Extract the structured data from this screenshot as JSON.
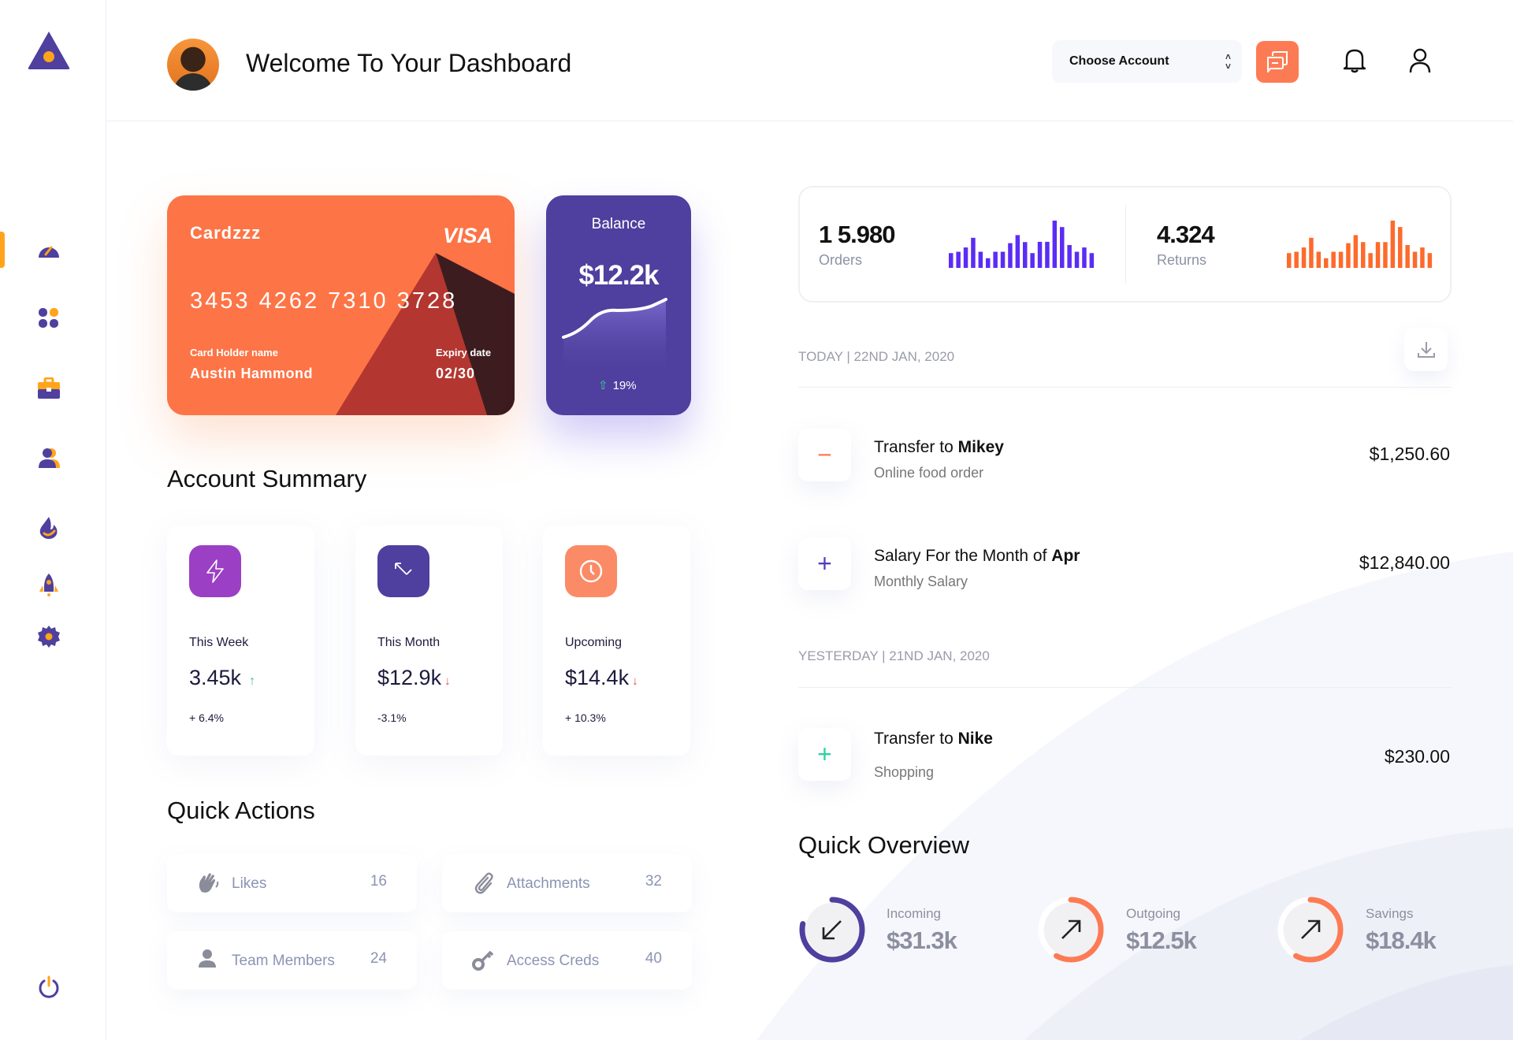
{
  "header": {
    "title": "Welcome To Your Dashboard",
    "account_select": "Choose Account"
  },
  "sidebar": {
    "items": [
      {
        "icon": "dashboard-gauge-icon"
      },
      {
        "icon": "apps-grid-icon"
      },
      {
        "icon": "briefcase-icon"
      },
      {
        "icon": "users-icon"
      },
      {
        "icon": "fire-icon"
      },
      {
        "icon": "rocket-icon"
      },
      {
        "icon": "settings-gear-icon"
      }
    ],
    "active": 0,
    "logout_icon": "power-icon"
  },
  "card": {
    "name": "Cardzzz",
    "brand": "VISA",
    "number": "3453 4262 7310 3728",
    "holder_label": "Card Holder name",
    "holder": "Austin Hammond",
    "expiry_label": "Expiry date",
    "expiry": "02/30"
  },
  "balance": {
    "label": "Balance",
    "value": "$12.2k",
    "change": "19%"
  },
  "account_summary": {
    "title": "Account Summary",
    "items": [
      {
        "label": "This Week",
        "value": "3.45k",
        "change": "+ 6.4%",
        "trend": "up",
        "color": "#9b3fc4",
        "icon": "lightning-icon"
      },
      {
        "label": "This Month",
        "value": "$12.9k",
        "change": "-3.1%",
        "trend": "down",
        "color": "#4f3f9e",
        "icon": "arrow-up-left-icon"
      },
      {
        "label": "Upcoming",
        "value": "$14.4k",
        "change": "+ 10.3%",
        "trend": "down",
        "color": "#fb8a66",
        "icon": "clock-icon"
      }
    ]
  },
  "quick_actions": {
    "title": "Quick Actions",
    "items": [
      {
        "label": "Likes",
        "count": "16",
        "icon": "clap-hands-icon"
      },
      {
        "label": "Attachments",
        "count": "32",
        "icon": "paperclip-icon"
      },
      {
        "label": "Team Members",
        "count": "24",
        "icon": "person-icon"
      },
      {
        "label": "Access Creds",
        "count": "40",
        "icon": "key-icon"
      }
    ]
  },
  "stats": {
    "orders": {
      "value": "1 5.980",
      "label": "Orders",
      "color": "#5b2cf5",
      "bars": [
        55,
        60,
        76,
        112,
        60,
        36,
        60,
        60,
        92,
        122,
        96,
        55,
        97,
        97,
        176,
        152,
        85,
        60,
        76,
        55
      ]
    },
    "returns": {
      "value": "4.324",
      "label": "Returns",
      "color": "#fd6a2c",
      "bars": [
        55,
        60,
        76,
        112,
        60,
        36,
        60,
        60,
        92,
        122,
        96,
        55,
        96,
        96,
        176,
        152,
        85,
        60,
        76,
        55
      ]
    }
  },
  "transactions": {
    "today_label": "TODAY | 22ND JAN, 2020",
    "yesterday_label": "YESTERDAY | 21ND JAN, 2020",
    "items": [
      {
        "sign": "−",
        "sign_color": "#fd7b54",
        "prefix": "Transfer to ",
        "bold": "Mikey",
        "sub": "Online food order",
        "amount": "$1,250.60"
      },
      {
        "sign": "+",
        "sign_color": "#4f3fc0",
        "prefix": "Salary For the Month of ",
        "bold": "Apr",
        "sub": "Monthly Salary",
        "amount": "$12,840.00"
      },
      {
        "sign": "+",
        "sign_color": "#2fd1a0",
        "prefix": "Transfer to ",
        "bold": "Nike",
        "sub": "Shopping",
        "amount": "$230.00"
      }
    ]
  },
  "overview": {
    "title": "Quick Overview",
    "items": [
      {
        "label": "Incoming",
        "value": "$31.3k",
        "progress": 0.78,
        "color": "#4f3f9e",
        "icon": "arrow-down-left-icon"
      },
      {
        "label": "Outgoing",
        "value": "$12.5k",
        "progress": 0.58,
        "color": "#fd7b54",
        "icon": "arrow-up-right-icon"
      },
      {
        "label": "Savings",
        "value": "$18.4k",
        "progress": 0.58,
        "color": "#fd7b54",
        "icon": "arrow-up-right-icon"
      }
    ]
  }
}
